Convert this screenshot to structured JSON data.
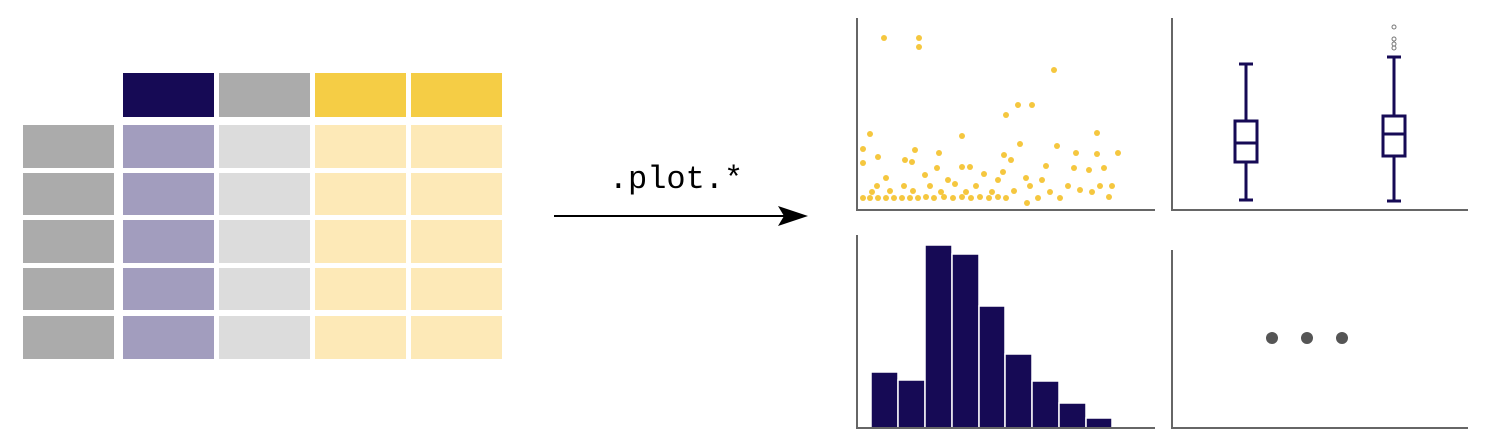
{
  "arrow_label": ".plot.*"
}
